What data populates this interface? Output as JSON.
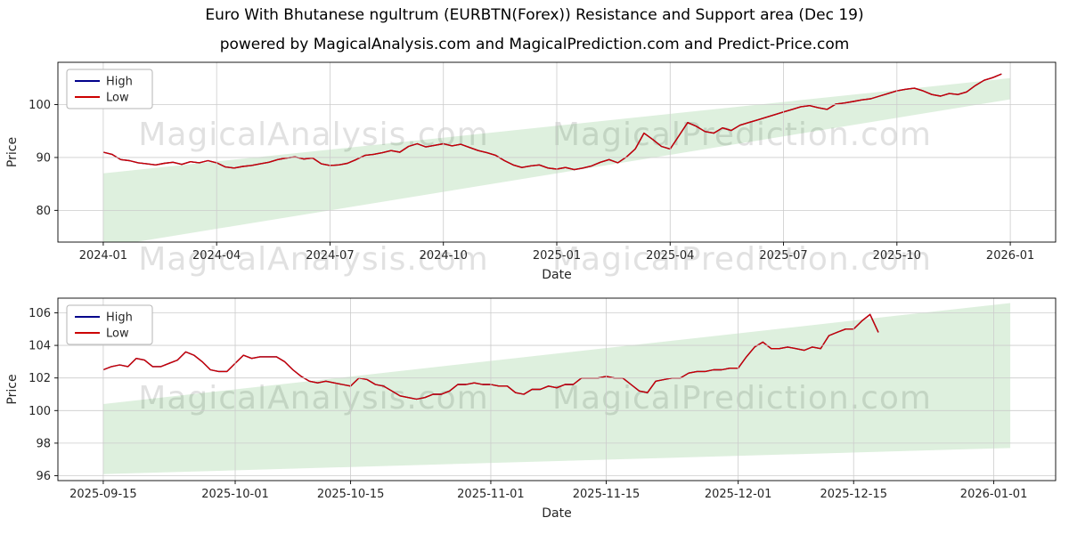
{
  "title": "Euro With Bhutanese ngultrum (EURBTN(Forex)) Resistance and Support area (Dec 19)",
  "subtitle": "powered by MagicalAnalysis.com and MagicalPrediction.com and Predict-Price.com",
  "watermarks": {
    "left": "MagicalAnalysis.com",
    "right": "MagicalPrediction.com"
  },
  "colors": {
    "high": "#00008b",
    "low": "#cc0000",
    "band": "rgba(0,140,0,0.13)",
    "grid": "#cccccc",
    "spine": "#000000",
    "text": "#262626"
  },
  "chart_data": [
    {
      "type": "line",
      "title": "",
      "xlabel": "Date",
      "ylabel": "Price",
      "grid": true,
      "legend_position": "upper left",
      "x": {
        "start": 0,
        "step": 1
      },
      "xlim": [
        -5.2,
        109.2
      ],
      "ylim": [
        74,
        108
      ],
      "yticks": [
        80,
        90,
        100
      ],
      "xticks": [
        {
          "x": 0,
          "label": "2024-01"
        },
        {
          "x": 13,
          "label": "2024-04"
        },
        {
          "x": 26,
          "label": "2024-07"
        },
        {
          "x": 39,
          "label": "2024-10"
        },
        {
          "x": 52,
          "label": "2025-01"
        },
        {
          "x": 65,
          "label": "2025-04"
        },
        {
          "x": 78,
          "label": "2025-07"
        },
        {
          "x": 91,
          "label": "2025-10"
        },
        {
          "x": 104,
          "label": "2026-01"
        }
      ],
      "band": {
        "label": "Resistance and Support area",
        "points": [
          [
            0,
            73
          ],
          [
            0,
            87
          ],
          [
            104,
            105
          ],
          [
            104,
            101
          ]
        ]
      },
      "series": [
        {
          "name": "High",
          "color": "#00008b",
          "values": [
            91.0,
            90.6,
            89.6,
            89.4,
            89.0,
            88.8,
            88.6,
            88.9,
            89.1,
            88.7,
            89.2,
            89.0,
            89.4,
            89.0,
            88.2,
            88.0,
            88.3,
            88.5,
            88.8,
            89.1,
            89.6,
            89.9,
            90.1,
            89.7,
            89.9,
            88.8,
            88.5,
            88.6,
            88.9,
            89.6,
            90.4,
            90.6,
            90.9,
            91.3,
            91.0,
            92.1,
            92.6,
            92.0,
            92.3,
            92.6,
            92.2,
            92.5,
            91.9,
            91.3,
            90.9,
            90.4,
            89.4,
            88.6,
            88.1,
            88.4,
            88.6,
            88.0,
            87.8,
            88.1,
            87.7,
            88.0,
            88.4,
            89.1,
            89.6,
            89.0,
            90.1,
            91.6,
            94.6,
            93.4,
            92.1,
            91.6,
            94.1,
            96.6,
            95.9,
            94.9,
            94.6,
            95.6,
            95.1,
            96.1,
            96.6,
            97.1,
            97.6,
            98.1,
            98.6,
            99.1,
            99.6,
            99.8,
            99.4,
            99.1,
            100.1,
            100.3,
            100.6,
            100.9,
            101.1,
            101.6,
            102.1,
            102.6,
            102.9,
            103.1,
            102.6,
            101.9,
            101.6,
            102.1,
            101.9,
            102.4,
            103.6,
            104.6,
            105.1,
            105.8
          ]
        },
        {
          "name": "Low",
          "color": "#cc0000",
          "values": [
            91.0,
            90.6,
            89.6,
            89.4,
            89.0,
            88.8,
            88.6,
            88.9,
            89.1,
            88.7,
            89.2,
            89.0,
            89.4,
            89.0,
            88.2,
            88.0,
            88.3,
            88.5,
            88.8,
            89.1,
            89.6,
            89.9,
            90.1,
            89.7,
            89.9,
            88.8,
            88.5,
            88.6,
            88.9,
            89.6,
            90.4,
            90.6,
            90.9,
            91.3,
            91.0,
            92.1,
            92.6,
            92.0,
            92.3,
            92.6,
            92.2,
            92.5,
            91.9,
            91.3,
            90.9,
            90.4,
            89.4,
            88.6,
            88.1,
            88.4,
            88.6,
            88.0,
            87.8,
            88.1,
            87.7,
            88.0,
            88.4,
            89.1,
            89.6,
            89.0,
            90.1,
            91.6,
            94.6,
            93.4,
            92.1,
            91.6,
            94.1,
            96.6,
            95.9,
            94.9,
            94.6,
            95.6,
            95.1,
            96.1,
            96.6,
            97.1,
            97.6,
            98.1,
            98.6,
            99.1,
            99.6,
            99.8,
            99.4,
            99.1,
            100.1,
            100.3,
            100.6,
            100.9,
            101.1,
            101.6,
            102.1,
            102.6,
            102.9,
            103.1,
            102.6,
            101.9,
            101.6,
            102.1,
            101.9,
            102.4,
            103.6,
            104.6,
            105.1,
            105.8
          ]
        }
      ]
    },
    {
      "type": "line",
      "title": "",
      "xlabel": "Date",
      "ylabel": "Price",
      "grid": true,
      "legend_position": "upper left",
      "x": {
        "start": 0,
        "step": 1
      },
      "xlim": [
        -5.5,
        115.5
      ],
      "ylim": [
        95.7,
        106.9
      ],
      "yticks": [
        96,
        98,
        100,
        102,
        104,
        106
      ],
      "xticks": [
        {
          "x": 0,
          "label": "2025-09-15"
        },
        {
          "x": 16,
          "label": "2025-10-01"
        },
        {
          "x": 30,
          "label": "2025-10-15"
        },
        {
          "x": 47,
          "label": "2025-11-01"
        },
        {
          "x": 61,
          "label": "2025-11-15"
        },
        {
          "x": 77,
          "label": "2025-12-01"
        },
        {
          "x": 91,
          "label": "2025-12-15"
        },
        {
          "x": 108,
          "label": "2026-01-01"
        }
      ],
      "band": {
        "label": "Resistance and Support area",
        "points": [
          [
            0,
            96.1
          ],
          [
            0,
            100.4
          ],
          [
            110,
            106.6
          ],
          [
            110,
            97.7
          ]
        ]
      },
      "series": [
        {
          "name": "High",
          "color": "#00008b",
          "values": [
            102.5,
            102.7,
            102.8,
            102.7,
            103.2,
            103.1,
            102.7,
            102.7,
            102.9,
            103.1,
            103.6,
            103.4,
            103.0,
            102.5,
            102.4,
            102.4,
            102.9,
            103.4,
            103.2,
            103.3,
            103.3,
            103.3,
            103.0,
            102.5,
            102.1,
            101.8,
            101.7,
            101.8,
            101.7,
            101.6,
            101.5,
            102.0,
            101.9,
            101.6,
            101.5,
            101.2,
            100.9,
            100.8,
            100.7,
            100.8,
            101.0,
            101.0,
            101.2,
            101.6,
            101.6,
            101.7,
            101.6,
            101.6,
            101.5,
            101.5,
            101.1,
            101.0,
            101.3,
            101.3,
            101.5,
            101.4,
            101.6,
            101.6,
            102.0,
            102.0,
            102.0,
            102.1,
            102.0,
            102.0,
            101.6,
            101.2,
            101.1,
            101.8,
            101.9,
            102.0,
            102.0,
            102.3,
            102.4,
            102.4,
            102.5,
            102.5,
            102.6,
            102.6,
            103.3,
            103.9,
            104.2,
            103.8,
            103.8,
            103.9,
            103.8,
            103.7,
            103.9,
            103.8,
            104.6,
            104.8,
            105.0,
            105.0,
            105.5,
            105.9,
            104.8
          ]
        },
        {
          "name": "Low",
          "color": "#cc0000",
          "values": [
            102.5,
            102.7,
            102.8,
            102.7,
            103.2,
            103.1,
            102.7,
            102.7,
            102.9,
            103.1,
            103.6,
            103.4,
            103.0,
            102.5,
            102.4,
            102.4,
            102.9,
            103.4,
            103.2,
            103.3,
            103.3,
            103.3,
            103.0,
            102.5,
            102.1,
            101.8,
            101.7,
            101.8,
            101.7,
            101.6,
            101.5,
            102.0,
            101.9,
            101.6,
            101.5,
            101.2,
            100.9,
            100.8,
            100.7,
            100.8,
            101.0,
            101.0,
            101.2,
            101.6,
            101.6,
            101.7,
            101.6,
            101.6,
            101.5,
            101.5,
            101.1,
            101.0,
            101.3,
            101.3,
            101.5,
            101.4,
            101.6,
            101.6,
            102.0,
            102.0,
            102.0,
            102.1,
            102.0,
            102.0,
            101.6,
            101.2,
            101.1,
            101.8,
            101.9,
            102.0,
            102.0,
            102.3,
            102.4,
            102.4,
            102.5,
            102.5,
            102.6,
            102.6,
            103.3,
            103.9,
            104.2,
            103.8,
            103.8,
            103.9,
            103.8,
            103.7,
            103.9,
            103.8,
            104.6,
            104.8,
            105.0,
            105.0,
            105.5,
            105.9,
            104.8
          ]
        }
      ]
    }
  ]
}
